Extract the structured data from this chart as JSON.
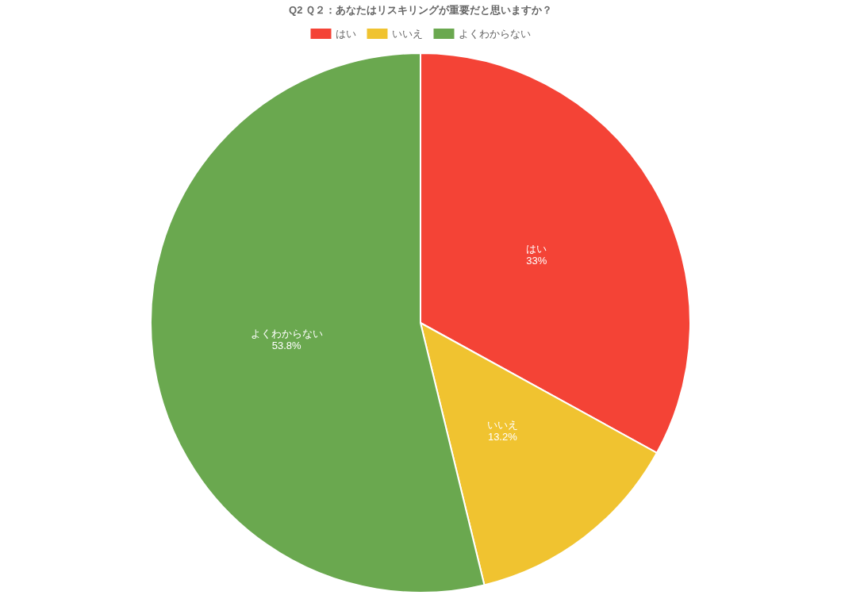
{
  "chart_data": {
    "type": "pie",
    "title": "Q2 Ｑ２：あなたはリスキリングが重要だと思いますか？",
    "categories": [
      "はい",
      "いいえ",
      "よくわからない"
    ],
    "values": [
      33,
      13.2,
      53.8
    ],
    "colors": [
      "#f44336",
      "#f0c330",
      "#6aa84f"
    ],
    "value_labels": [
      "33%",
      "13.2%",
      "53.8%"
    ],
    "legend": "top"
  }
}
